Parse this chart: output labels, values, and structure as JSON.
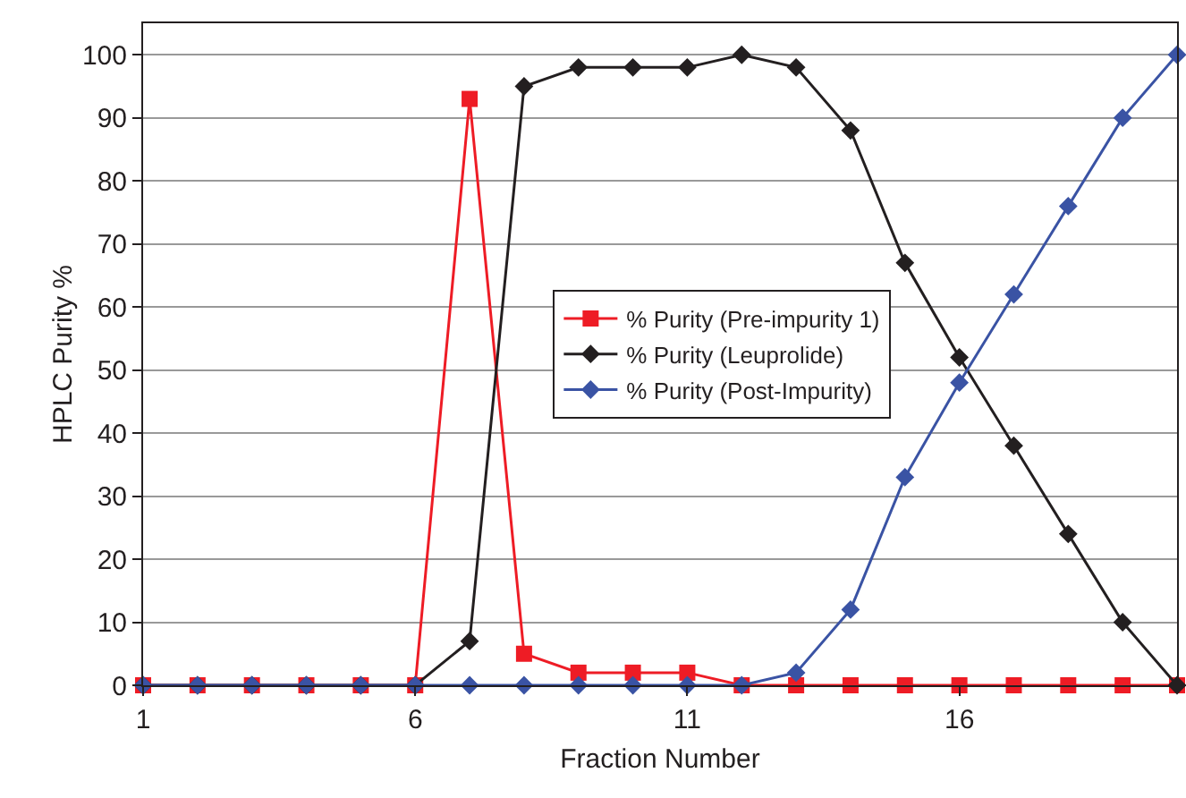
{
  "chart_data": {
    "type": "line",
    "xlabel": "Fraction Number",
    "ylabel": "HPLC Purity %",
    "x": [
      1,
      2,
      3,
      4,
      5,
      6,
      7,
      8,
      9,
      10,
      11,
      12,
      13,
      14,
      15,
      16,
      17,
      18,
      19,
      20
    ],
    "xlim": [
      1,
      20
    ],
    "xticks": [
      1,
      6,
      11,
      16
    ],
    "ylim": [
      0,
      105
    ],
    "yticks": [
      0,
      10,
      20,
      30,
      40,
      50,
      60,
      70,
      80,
      90,
      100
    ],
    "grid": "y",
    "legend": "center",
    "line_style": "solid",
    "series": [
      {
        "name": "% Purity (Pre-impurity 1)",
        "color": "#ee1c25",
        "marker": "square",
        "values": [
          0,
          0,
          0,
          0,
          0,
          0,
          93,
          5,
          2,
          2,
          2,
          0,
          0,
          0,
          0,
          0,
          0,
          0,
          0,
          0
        ]
      },
      {
        "name": "% Purity (Leuprolide)",
        "color": "#231f20",
        "marker": "diamond",
        "values": [
          0,
          0,
          0,
          0,
          0,
          0,
          7,
          95,
          98,
          98,
          98,
          100,
          98,
          88,
          67,
          52,
          38,
          24,
          10,
          0
        ]
      },
      {
        "name": "% Purity (Post-Impurity)",
        "color": "#3a53a4",
        "marker": "diamond",
        "values": [
          0,
          0,
          0,
          0,
          0,
          0,
          0,
          0,
          0,
          0,
          0,
          0,
          2,
          12,
          33,
          48,
          62,
          76,
          90,
          100
        ]
      }
    ]
  }
}
